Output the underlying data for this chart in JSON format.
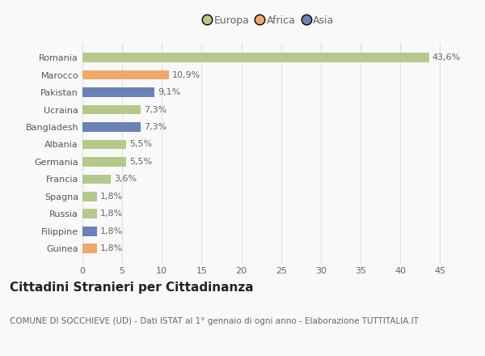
{
  "categories": [
    "Guinea",
    "Filippine",
    "Russia",
    "Spagna",
    "Francia",
    "Germania",
    "Albania",
    "Bangladesh",
    "Ucraina",
    "Pakistan",
    "Marocco",
    "Romania"
  ],
  "values": [
    1.8,
    1.8,
    1.8,
    1.8,
    3.6,
    5.5,
    5.5,
    7.3,
    7.3,
    9.1,
    10.9,
    43.6
  ],
  "labels": [
    "1,8%",
    "1,8%",
    "1,8%",
    "1,8%",
    "3,6%",
    "5,5%",
    "5,5%",
    "7,3%",
    "7,3%",
    "9,1%",
    "10,9%",
    "43,6%"
  ],
  "colors": [
    "#f0a868",
    "#6b82b8",
    "#b5c98a",
    "#b5c98a",
    "#b5c98a",
    "#b5c98a",
    "#b5c98a",
    "#6b82b8",
    "#b5c98a",
    "#6b82b8",
    "#f0a868",
    "#b5c98a"
  ],
  "legend_labels": [
    "Europa",
    "Africa",
    "Asia"
  ],
  "legend_colors": [
    "#b5c98a",
    "#f0a868",
    "#6b82b8"
  ],
  "title": "Cittadini Stranieri per Cittadinanza",
  "subtitle": "COMUNE DI SOCCHIEVE (UD) - Dati ISTAT al 1° gennaio di ogni anno - Elaborazione TUTTITALIA.IT",
  "xlim": [
    0,
    47
  ],
  "xticks": [
    0,
    5,
    10,
    15,
    20,
    25,
    30,
    35,
    40,
    45
  ],
  "background_color": "#f9f9f9",
  "grid_color": "#e0e0e0",
  "bar_height": 0.55,
  "title_fontsize": 11,
  "subtitle_fontsize": 7.5,
  "label_fontsize": 8,
  "tick_fontsize": 8,
  "legend_fontsize": 9
}
